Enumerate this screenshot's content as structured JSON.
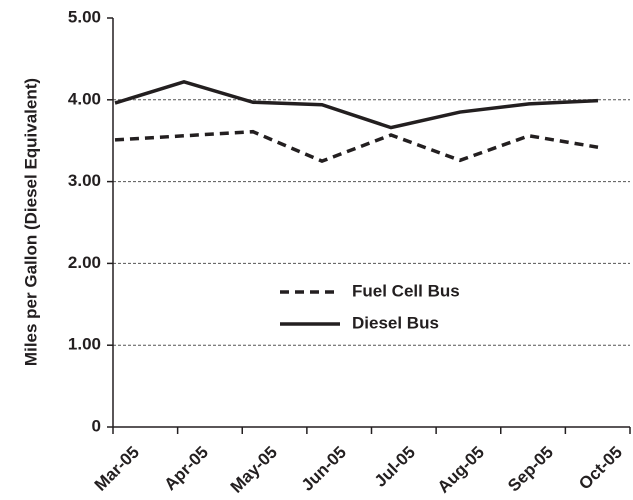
{
  "chart_data": {
    "type": "line",
    "y_label": "Miles per Gallon (Diesel Equivalent)",
    "categories": [
      "Mar-05",
      "Apr-05",
      "May-05",
      "Jun-05",
      "Jul-05",
      "Aug-05",
      "Sep-05",
      "Oct-05"
    ],
    "series": [
      {
        "name": "Fuel Cell Bus",
        "color": "#231f20",
        "line_style": "dashed",
        "values": [
          3.51,
          3.56,
          3.61,
          3.25,
          3.57,
          3.26,
          3.56,
          3.42
        ]
      },
      {
        "name": "Diesel Bus",
        "color": "#231f20",
        "line_style": "solid",
        "values": [
          3.96,
          4.22,
          3.97,
          3.94,
          3.66,
          3.85,
          3.95,
          3.99
        ]
      }
    ],
    "ylim": [
      0,
      5
    ],
    "yticks": [
      0,
      {
        "value": 1,
        "label": "1.00"
      },
      {
        "value": 2,
        "label": "2.00"
      },
      {
        "value": 3,
        "label": "3.00"
      },
      {
        "value": 4,
        "label": "4.00"
      },
      {
        "value": 5,
        "label": "5.00"
      }
    ],
    "grid": true,
    "legend": "center"
  }
}
